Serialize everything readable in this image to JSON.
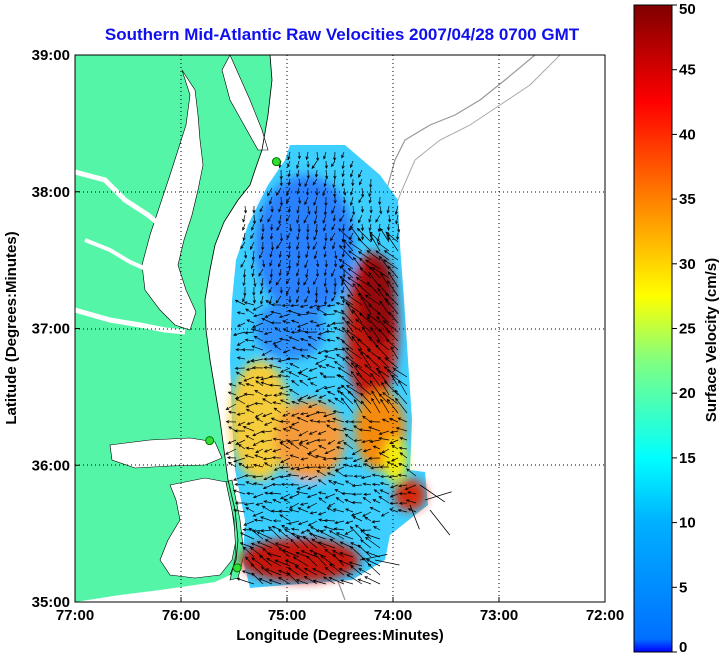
{
  "title": "Southern Mid-Atlantic Raw Velocities 2007/04/28 0700 GMT",
  "x_axis": {
    "label": "Longitude (Degrees:Minutes)",
    "ticks": [
      {
        "value": -77,
        "label": "77:00"
      },
      {
        "value": -76,
        "label": "76:00"
      },
      {
        "value": -75,
        "label": "75:00"
      },
      {
        "value": -74,
        "label": "74:00"
      },
      {
        "value": -73,
        "label": "73:00"
      },
      {
        "value": -72,
        "label": "72:00"
      }
    ],
    "range": [
      -77,
      -72
    ]
  },
  "y_axis": {
    "label": "Latitude (Degrees:Minutes)",
    "ticks": [
      {
        "value": 35,
        "label": "35:00"
      },
      {
        "value": 36,
        "label": "36:00"
      },
      {
        "value": 37,
        "label": "37:00"
      },
      {
        "value": 38,
        "label": "38:00"
      },
      {
        "value": 39,
        "label": "39:00"
      }
    ],
    "range": [
      35,
      39
    ]
  },
  "colorbar": {
    "label": "Surface Velocity (cm/s)",
    "min": 0,
    "max": 50,
    "ticks": [
      {
        "value": 0,
        "label": "0"
      },
      {
        "value": 5,
        "label": "5"
      },
      {
        "value": 10,
        "label": "10"
      },
      {
        "value": 15,
        "label": "15"
      },
      {
        "value": 20,
        "label": "20"
      },
      {
        "value": 25,
        "label": "25"
      },
      {
        "value": 30,
        "label": "30"
      },
      {
        "value": 35,
        "label": "35"
      },
      {
        "value": 40,
        "label": "40"
      },
      {
        "value": 45,
        "label": "45"
      },
      {
        "value": 50,
        "label": "50"
      }
    ],
    "colormap": "jet"
  },
  "colors": {
    "land": "#55f5a8",
    "water": "#ffffff",
    "bathymetry": "#999999",
    "grid": "#000000",
    "title": "#1010ee",
    "station": "#33dd33"
  },
  "grid": true,
  "stations": [
    {
      "lon": -75.1,
      "lat": 38.22
    },
    {
      "lon": -75.73,
      "lat": 36.18
    },
    {
      "lon": -75.47,
      "lat": 35.25
    }
  ]
}
